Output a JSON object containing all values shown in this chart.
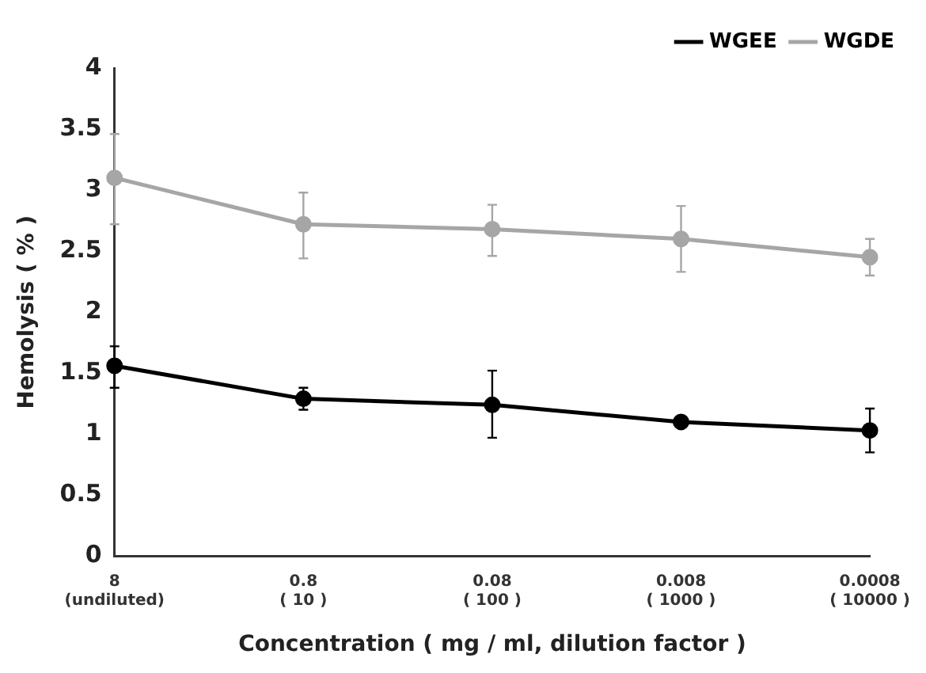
{
  "chart_data": {
    "type": "line",
    "xlabel": "Concentration ( mg / ml, dilution factor )",
    "ylabel": "Hemolysis ( % )",
    "categories": [
      "8\n(undiluted)",
      "0.8\n( 10 )",
      "0.08\n( 100 )",
      "0.008\n( 1000 )",
      "0.0008\n( 10000 )"
    ],
    "series": [
      {
        "name": "WGEE",
        "color": "#000000",
        "values": [
          1.56,
          1.29,
          1.24,
          1.1,
          1.03
        ],
        "errors": [
          [
            1.38,
            1.72
          ],
          [
            1.2,
            1.38
          ],
          [
            0.97,
            1.52
          ],
          null,
          [
            0.85,
            1.21
          ]
        ]
      },
      {
        "name": "WGDE",
        "color": "#a6a6a6",
        "values": [
          3.1,
          2.72,
          2.68,
          2.6,
          2.45
        ],
        "errors": [
          [
            2.72,
            3.46
          ],
          [
            2.44,
            2.98
          ],
          [
            2.46,
            2.88
          ],
          [
            2.33,
            2.87
          ],
          [
            2.3,
            2.6
          ]
        ]
      }
    ],
    "ylim": [
      0,
      4
    ],
    "yticks": [
      0,
      0.5,
      1,
      1.5,
      2,
      2.5,
      3,
      3.5,
      4
    ],
    "grid": false,
    "legend": "top right",
    "marker": "circle",
    "line_style": "solid"
  }
}
